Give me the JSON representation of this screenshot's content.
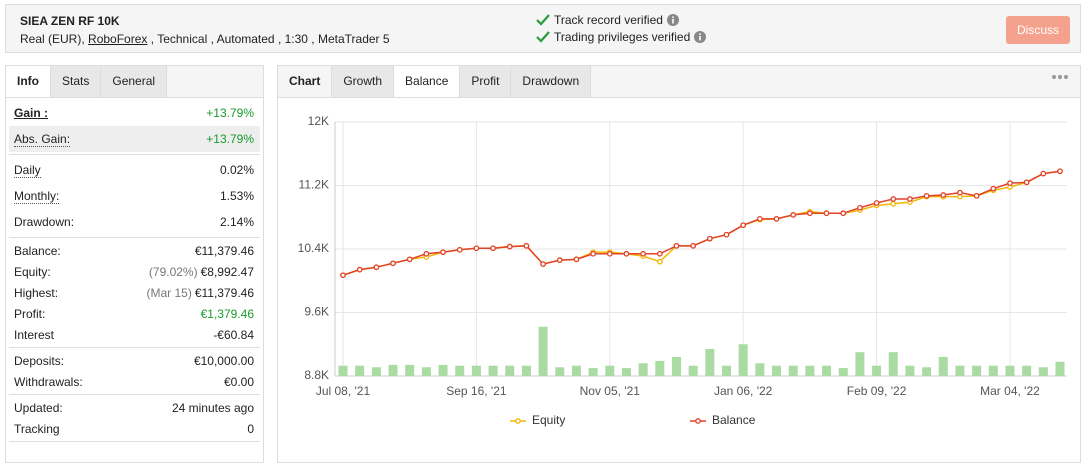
{
  "header": {
    "title": "SIEA ZEN RF 10K",
    "account": "Real (EUR),",
    "broker": "RoboForex",
    "details": ", Technical , Automated , 1:30 , MetaTrader 5",
    "verifications": [
      "Track record verified",
      "Trading privileges verified"
    ],
    "button": "Discuss"
  },
  "stats_panel": {
    "tabs": [
      "Info",
      "Stats",
      "General"
    ],
    "active": 0,
    "groups": [
      [
        {
          "label": "Gain :",
          "value": "+13.79%"
        },
        {
          "label": "Abs. Gain:",
          "value": "+13.79%"
        }
      ],
      [
        {
          "label": "Daily",
          "value": "0.02%"
        },
        {
          "label": "Monthly:",
          "value": "1.53%"
        },
        {
          "label": "Drawdown:",
          "value": "2.14%"
        }
      ],
      [
        {
          "label": "Balance:",
          "value": "€11,379.46"
        },
        {
          "label": "Equity:",
          "note": "(79.02%)",
          "value": "€8,992.47"
        },
        {
          "label": "Highest:",
          "note": "(Mar 15)",
          "value": "€11,379.46"
        },
        {
          "label": "Profit:",
          "value": "€1,379.46"
        },
        {
          "label": "Interest",
          "value": "-€60.84"
        }
      ],
      [
        {
          "label": "Deposits:",
          "value": "€10,000.00"
        },
        {
          "label": "Withdrawals:",
          "value": "€0.00"
        }
      ],
      [
        {
          "label": "Updated:",
          "value": "24 minutes ago"
        },
        {
          "label": "Tracking",
          "value": "0"
        }
      ]
    ]
  },
  "chart_panel": {
    "tabs": [
      "Chart",
      "Growth",
      "Balance",
      "Profit",
      "Drawdown"
    ],
    "active": 2
  },
  "chart_data": {
    "type": "line",
    "categories": [
      "Jul 08, '21",
      null,
      null,
      null,
      null,
      null,
      null,
      null,
      "Sep 16, '21",
      null,
      null,
      null,
      null,
      null,
      null,
      null,
      "Nov 05, '21",
      null,
      null,
      null,
      null,
      null,
      null,
      null,
      "Jan 06, '22",
      null,
      null,
      null,
      null,
      null,
      null,
      null,
      "Feb 09, '22",
      null,
      null,
      null,
      null,
      null,
      null,
      null,
      "Mar 04, '22",
      null,
      null,
      null
    ],
    "series": [
      {
        "name": "Equity",
        "color": "#f2b705",
        "values": [
          10070,
          10140,
          10170,
          10220,
          10270,
          10300,
          10360,
          10390,
          10410,
          10410,
          10430,
          10440,
          10210,
          10260,
          10270,
          10360,
          10360,
          10340,
          10310,
          10240,
          10440,
          10440,
          10530,
          10580,
          10700,
          10770,
          10780,
          10830,
          10870,
          10850,
          10850,
          10890,
          10950,
          10970,
          10990,
          11060,
          11060,
          11060,
          11070,
          11140,
          11180,
          11240,
          11350,
          11380
        ]
      },
      {
        "name": "Balance",
        "color": "#e2412b",
        "values": [
          10070,
          10140,
          10170,
          10220,
          10270,
          10340,
          10360,
          10390,
          10410,
          10410,
          10430,
          10440,
          10210,
          10260,
          10270,
          10340,
          10340,
          10340,
          10340,
          10340,
          10440,
          10440,
          10530,
          10580,
          10700,
          10780,
          10780,
          10830,
          10850,
          10850,
          10850,
          10920,
          10980,
          11030,
          11030,
          11070,
          11080,
          11110,
          11070,
          11160,
          11230,
          11240,
          11350,
          11380
        ]
      }
    ],
    "bars": {
      "color": "#a9dba3",
      "values": [
        8930,
        8930,
        8910,
        8940,
        8940,
        8910,
        8940,
        8930,
        8930,
        8930,
        8930,
        8930,
        9420,
        8910,
        8930,
        8900,
        8930,
        8900,
        8960,
        8990,
        9040,
        8930,
        9140,
        8930,
        9200,
        8960,
        8930,
        8930,
        8930,
        8930,
        8900,
        9100,
        8930,
        9100,
        8930,
        8910,
        9040,
        8930,
        8930,
        8930,
        8930,
        8930,
        8910,
        8980
      ]
    },
    "ylim": [
      8800,
      12000
    ],
    "yticks": [
      {
        "value": 8800,
        "label": "8.8K"
      },
      {
        "value": 9600,
        "label": "9.6K"
      },
      {
        "value": 10400,
        "label": "10.4K"
      },
      {
        "value": 11200,
        "label": "11.2K"
      },
      {
        "value": 12000,
        "label": "12K"
      }
    ],
    "grid": true,
    "legend": "bottom"
  }
}
